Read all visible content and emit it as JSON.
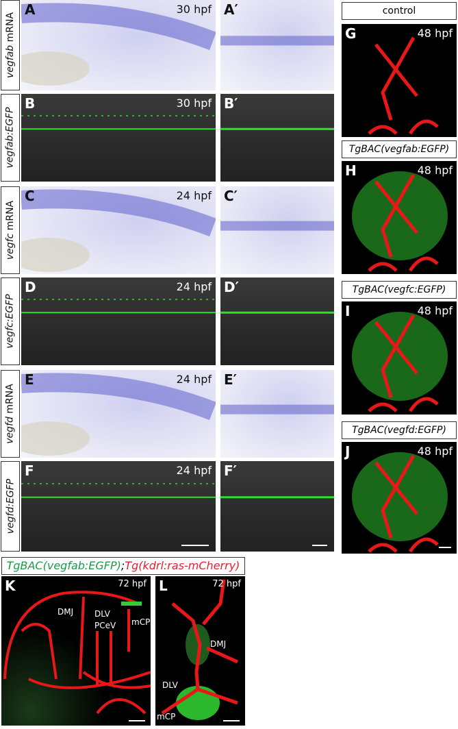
{
  "rows": [
    {
      "gene": "vegfab",
      "suffix": " mRNA",
      "panel": "A",
      "prime": "A′",
      "stage": "30 hpf",
      "type": "ish"
    },
    {
      "gene": "vegfab:EGFP",
      "suffix": "",
      "panel": "B",
      "prime": "B′",
      "stage": "30 hpf",
      "type": "gfp"
    },
    {
      "gene": "vegfc",
      "suffix": " mRNA",
      "panel": "C",
      "prime": "C′",
      "stage": "24 hpf",
      "type": "ish"
    },
    {
      "gene": "vegfc:EGFP",
      "suffix": "",
      "panel": "D",
      "prime": "D′",
      "stage": "24 hpf",
      "type": "gfp"
    },
    {
      "gene": "vegfd",
      "suffix": " mRNA",
      "panel": "E",
      "prime": "E′",
      "stage": "24 hpf",
      "type": "ish"
    },
    {
      "gene": "vegfd:EGFP",
      "suffix": "",
      "panel": "F",
      "prime": "F′",
      "stage": "24 hpf",
      "type": "gfp"
    }
  ],
  "right": [
    {
      "title": "control",
      "italic": false,
      "panel": "G",
      "stage": "48 hpf"
    },
    {
      "title": "TgBAC(vegfab:EGFP)",
      "italic": true,
      "panel": "H",
      "stage": "48 hpf"
    },
    {
      "title": "TgBAC(vegfc:EGFP)",
      "italic": true,
      "panel": "I",
      "stage": "48 hpf"
    },
    {
      "title": "TgBAC(vegfd:EGFP)",
      "italic": true,
      "panel": "J",
      "stage": "48 hpf"
    }
  ],
  "bottom": {
    "title_green": "TgBAC(vegfab:EGFP)",
    "title_sep": ";",
    "title_red": "Tg(kdrl:ras-mCherry)",
    "green": "#1a9a4a",
    "red": "#e8202a",
    "K": {
      "panel": "K",
      "stage": "72 hpf",
      "labels": [
        "DMJ",
        "DLV",
        "PCeV",
        "mCP"
      ]
    },
    "L": {
      "panel": "L",
      "stage": "72 hpf",
      "labels": [
        "DMJ",
        "DLV",
        "mCP"
      ]
    }
  }
}
